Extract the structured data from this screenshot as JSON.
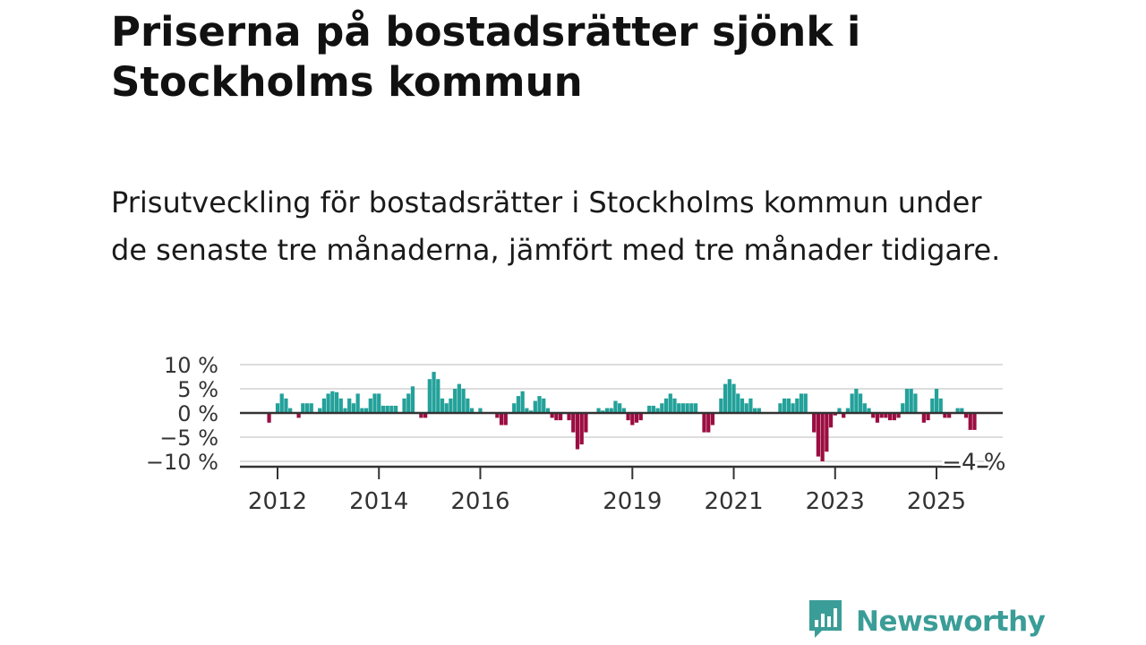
{
  "header": {
    "title": "Priserna på bostadsrätter sjönk i Stockholms kommun",
    "subtitle": "Prisutveckling för bostadsrätter i Stockholms kommun under de senaste tre månaderna, jämfört med tre månader tidigare."
  },
  "brand": {
    "name": "Newsworthy",
    "color": "#3b9d97",
    "icon": "bar-chart-speech-bubble-icon"
  },
  "chart_data": {
    "type": "bar",
    "title": "",
    "xlabel": "",
    "ylabel": "",
    "ylim": [
      -10,
      10
    ],
    "yticks": [
      10,
      5,
      0,
      -5,
      -10
    ],
    "ytick_labels": [
      "10 %",
      "5 %",
      "0 %",
      "−5 %",
      "−10 %"
    ],
    "x_ticks": [
      2012,
      2014,
      2016,
      2019,
      2021,
      2023,
      2025
    ],
    "x_tick_labels": [
      "2012",
      "2014",
      "2016",
      "2019",
      "2021",
      "2023",
      "2025"
    ],
    "grid": true,
    "positive_color": "#23a19a",
    "negative_color": "#9b0d41",
    "start_month": "2011-11",
    "values": [
      -2,
      0,
      2,
      4,
      3,
      1,
      0,
      -1,
      2,
      2,
      2,
      0,
      1,
      3,
      4,
      4.5,
      4.3,
      3,
      1,
      3,
      2,
      4,
      1,
      1,
      3,
      4,
      4,
      1.5,
      1.5,
      1.5,
      1.5,
      0,
      3,
      4,
      5.5,
      0,
      -1,
      -1,
      7,
      8.5,
      7,
      3,
      2,
      3,
      5,
      6,
      5,
      3,
      1,
      0,
      1,
      0,
      0,
      0,
      -1,
      -2.5,
      -2.5,
      0,
      2,
      3.5,
      4.5,
      1,
      0.5,
      2.5,
      3.5,
      3,
      1,
      -1,
      -1.5,
      -1.5,
      0,
      -1.5,
      -4,
      -7.5,
      -6.5,
      -4,
      0,
      0,
      1,
      0.5,
      1,
      1,
      2.5,
      2,
      1,
      -1.5,
      -2.5,
      -2,
      -1.5,
      0,
      1.5,
      1.5,
      1,
      2,
      3,
      4,
      3,
      2,
      2,
      2,
      2,
      2,
      0,
      -4,
      -4,
      -2.5,
      0,
      3,
      6,
      7,
      6,
      4,
      3,
      2,
      3,
      1,
      1,
      0,
      0,
      0,
      0,
      2,
      3,
      3,
      2,
      3,
      4,
      4,
      0,
      -4,
      -9,
      -10,
      -8,
      -3,
      -0.5,
      1,
      -1,
      1,
      4,
      5,
      4,
      2,
      1,
      -1,
      -2,
      -1,
      -1,
      -1.5,
      -1.5,
      -1,
      2,
      5,
      5,
      4,
      0,
      -2,
      -1.5,
      3,
      5,
      3,
      -1,
      -1,
      0,
      1,
      1,
      -1,
      -3.5,
      -3.5
    ],
    "annotation": {
      "text": "−4 %",
      "value": -4
    }
  }
}
